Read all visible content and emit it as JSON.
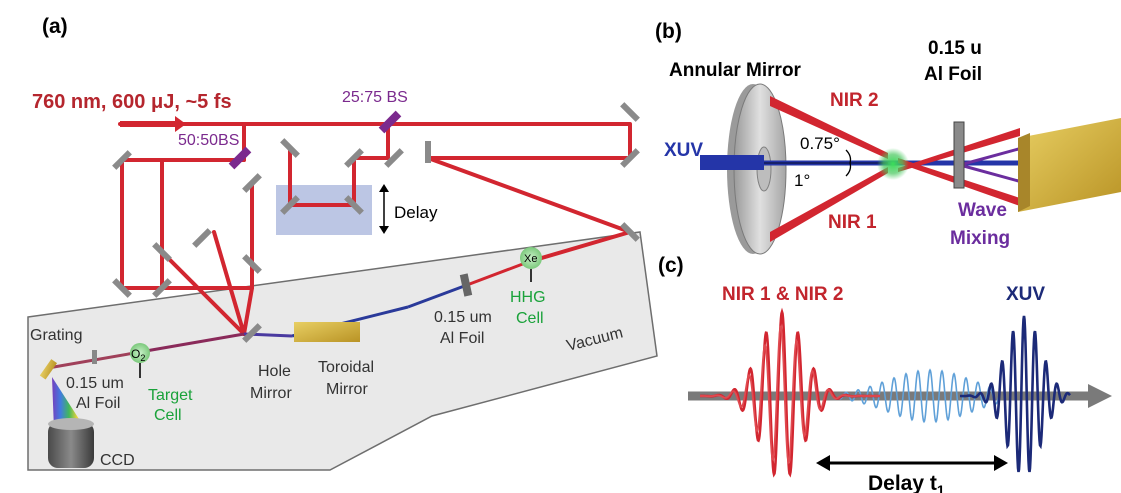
{
  "colors": {
    "beam_red": "#d22630",
    "beam_blue": "#1f2f8f",
    "purple": "#7b2a8e",
    "green": "#1aa23a",
    "vacuum_fill": "#e9e9e9",
    "delay_fill": "#bcc6e4",
    "mirror_gray": "#808080",
    "foil_gold": "#d6b84a"
  },
  "panel_a": {
    "letter": "(a)",
    "laser_spec": "760 nm, 600 μJ, ~5 fs",
    "bs_25_75": "25:75 BS",
    "bs_50_50": "50:50BS",
    "delay": "Delay",
    "vacuum": "Vacuum",
    "grating": "Grating",
    "o2": "O",
    "o2_sub": "2",
    "xe": "Xe",
    "foil_near_target_1": "0.15 um",
    "foil_near_target_2": "Al Foil",
    "target_cell_1": "Target",
    "target_cell_2": "Cell",
    "hole_mirror_1": "Hole",
    "hole_mirror_2": "Mirror",
    "toroidal_1": "Toroidal",
    "toroidal_2": "Mirror",
    "foil_vacuum_1": "0.15 um",
    "foil_vacuum_2": "Al Foil",
    "hhg_1": "HHG",
    "hhg_2": "Cell",
    "ccd": "CCD"
  },
  "panel_b": {
    "letter": "(b)",
    "annular_mirror": "Annular Mirror",
    "nir2": "NIR 2",
    "nir1": "NIR 1",
    "xuv": "XUV",
    "angle_small": "0.75°",
    "angle_big": "1°",
    "foil_1": "0.15 u",
    "foil_2": "Al Foil",
    "wave_1": "Wave",
    "wave_2": "Mixing"
  },
  "panel_c": {
    "letter": "(c)",
    "nir_label": "NIR 1 & NIR 2",
    "xuv_label": "XUV",
    "delay_label": "Delay t",
    "delay_sub": "1"
  }
}
